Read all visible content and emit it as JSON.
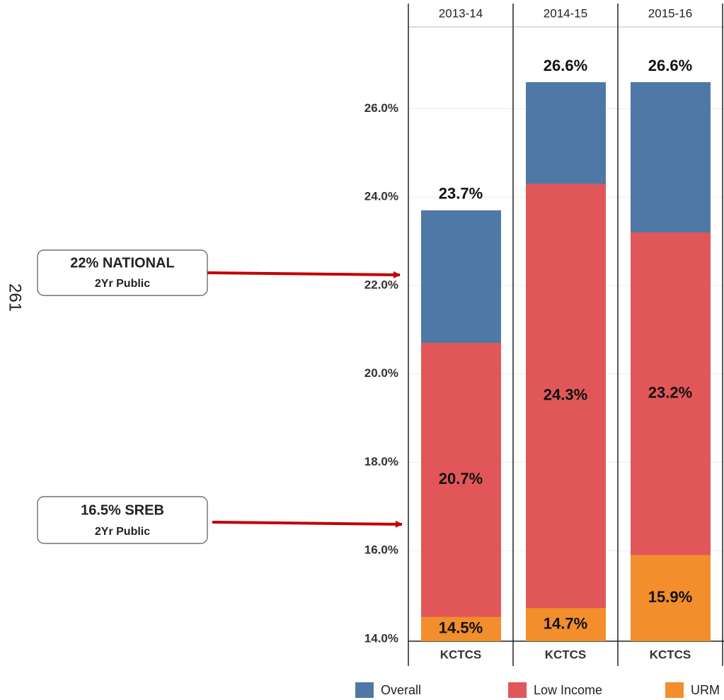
{
  "page_number": "261",
  "annotations": [
    {
      "text": "22% NATIONAL",
      "subtext": "2Yr Public"
    },
    {
      "text": "16.5% SREB",
      "subtext": "2Yr Public"
    }
  ],
  "chart_data": {
    "type": "bar",
    "categories": [
      "2013-14",
      "2014-15",
      "2015-16"
    ],
    "sublabels": [
      "KCTCS",
      "KCTCS",
      "KCTCS"
    ],
    "series": [
      {
        "name": "Overall",
        "color": "#4e79a7",
        "values": [
          23.7,
          26.6,
          26.6
        ],
        "value_labels": [
          "23.7%",
          "26.6%",
          "26.6%"
        ]
      },
      {
        "name": "Low Income",
        "color": "#e15759",
        "values": [
          20.7,
          24.3,
          23.2
        ],
        "value_labels": [
          "20.7%",
          "24.3%",
          "23.2%"
        ]
      },
      {
        "name": "URM",
        "color": "#f28e2b",
        "values": [
          14.5,
          14.7,
          15.9
        ],
        "value_labels": [
          "14.5%",
          "14.7%",
          "15.9%"
        ]
      }
    ],
    "ylim": [
      13.95,
      27.85
    ],
    "yticks": [
      {
        "value": 14,
        "label": "14.0%"
      },
      {
        "value": 16,
        "label": "16.0%"
      },
      {
        "value": 18,
        "label": "18.0%"
      },
      {
        "value": 20,
        "label": "20.0%"
      },
      {
        "value": 22,
        "label": "22.0%"
      },
      {
        "value": 24,
        "label": "24.0%"
      },
      {
        "value": 26,
        "label": "26.0%"
      }
    ],
    "grid": true
  }
}
